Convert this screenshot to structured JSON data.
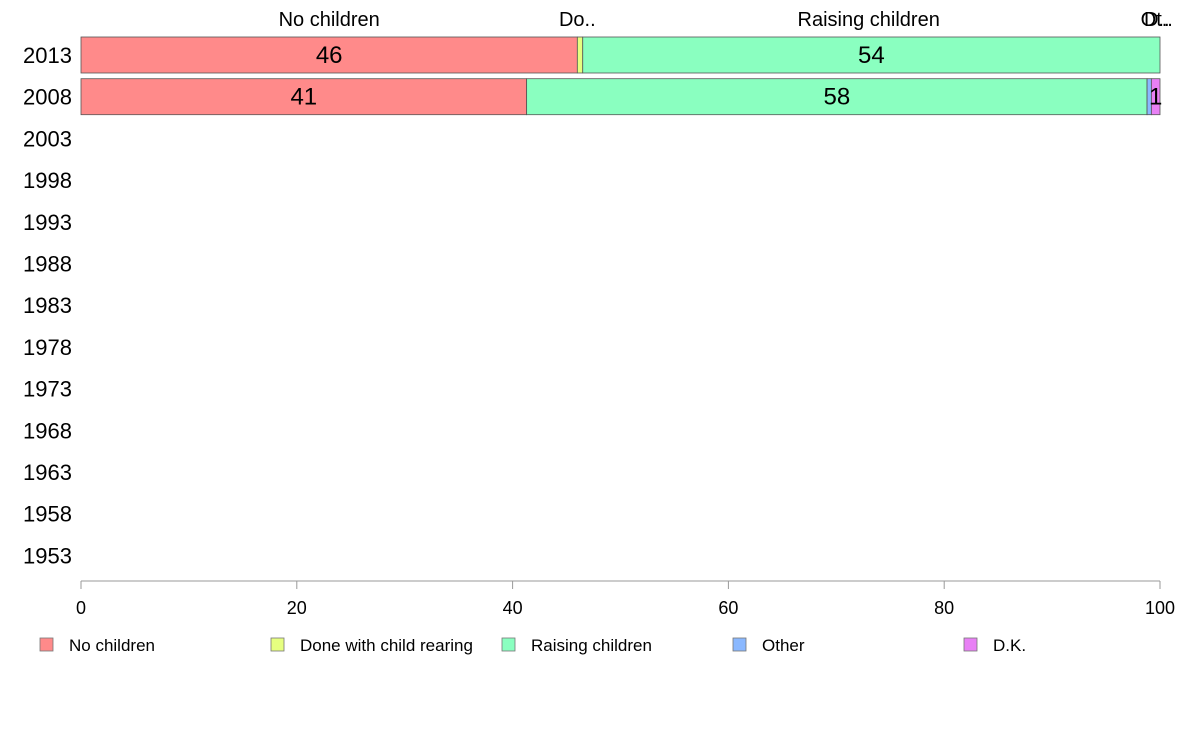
{
  "chart_data": {
    "type": "bar",
    "orientation": "horizontal",
    "stacked": true,
    "categories": [
      "2013",
      "2008",
      "2003",
      "1998",
      "1993",
      "1988",
      "1983",
      "1978",
      "1973",
      "1968",
      "1963",
      "1958",
      "1953"
    ],
    "series": [
      {
        "name": "No children",
        "color": "#FF8A8A",
        "values": [
          46,
          41.3,
          null,
          null,
          null,
          null,
          null,
          null,
          null,
          null,
          null,
          null,
          null
        ]
      },
      {
        "name": "Done with child rearing",
        "color": "#E6FF80",
        "values": [
          0.5,
          0,
          null,
          null,
          null,
          null,
          null,
          null,
          null,
          null,
          null,
          null,
          null
        ]
      },
      {
        "name": "Raising children",
        "color": "#8AFFC0",
        "values": [
          53.5,
          57.5,
          null,
          null,
          null,
          null,
          null,
          null,
          null,
          null,
          null,
          null,
          null
        ]
      },
      {
        "name": "Other",
        "color": "#8AB8FF",
        "values": [
          0,
          0.4,
          null,
          null,
          null,
          null,
          null,
          null,
          null,
          null,
          null,
          null,
          null
        ]
      },
      {
        "name": "D.K.",
        "color": "#E880F5",
        "values": [
          0,
          0.8,
          null,
          null,
          null,
          null,
          null,
          null,
          null,
          null,
          null,
          null,
          null
        ]
      }
    ],
    "data_labels": [
      [
        "46",
        "",
        "54",
        "",
        ""
      ],
      [
        "41",
        "",
        "58",
        "",
        "1"
      ]
    ],
    "top_labels": [
      {
        "text": "No children",
        "x": 23
      },
      {
        "text": "Do..",
        "x": 46
      },
      {
        "text": "Raising children",
        "x": 73
      },
      {
        "text": "Ot..",
        "x": 99.7
      },
      {
        "text": "D..",
        "x": 99.7
      }
    ],
    "xlim": [
      0,
      100
    ],
    "xticks": [
      "0",
      "20",
      "40",
      "60",
      "80",
      "100"
    ],
    "grid": false,
    "legend_position": "bottom"
  }
}
